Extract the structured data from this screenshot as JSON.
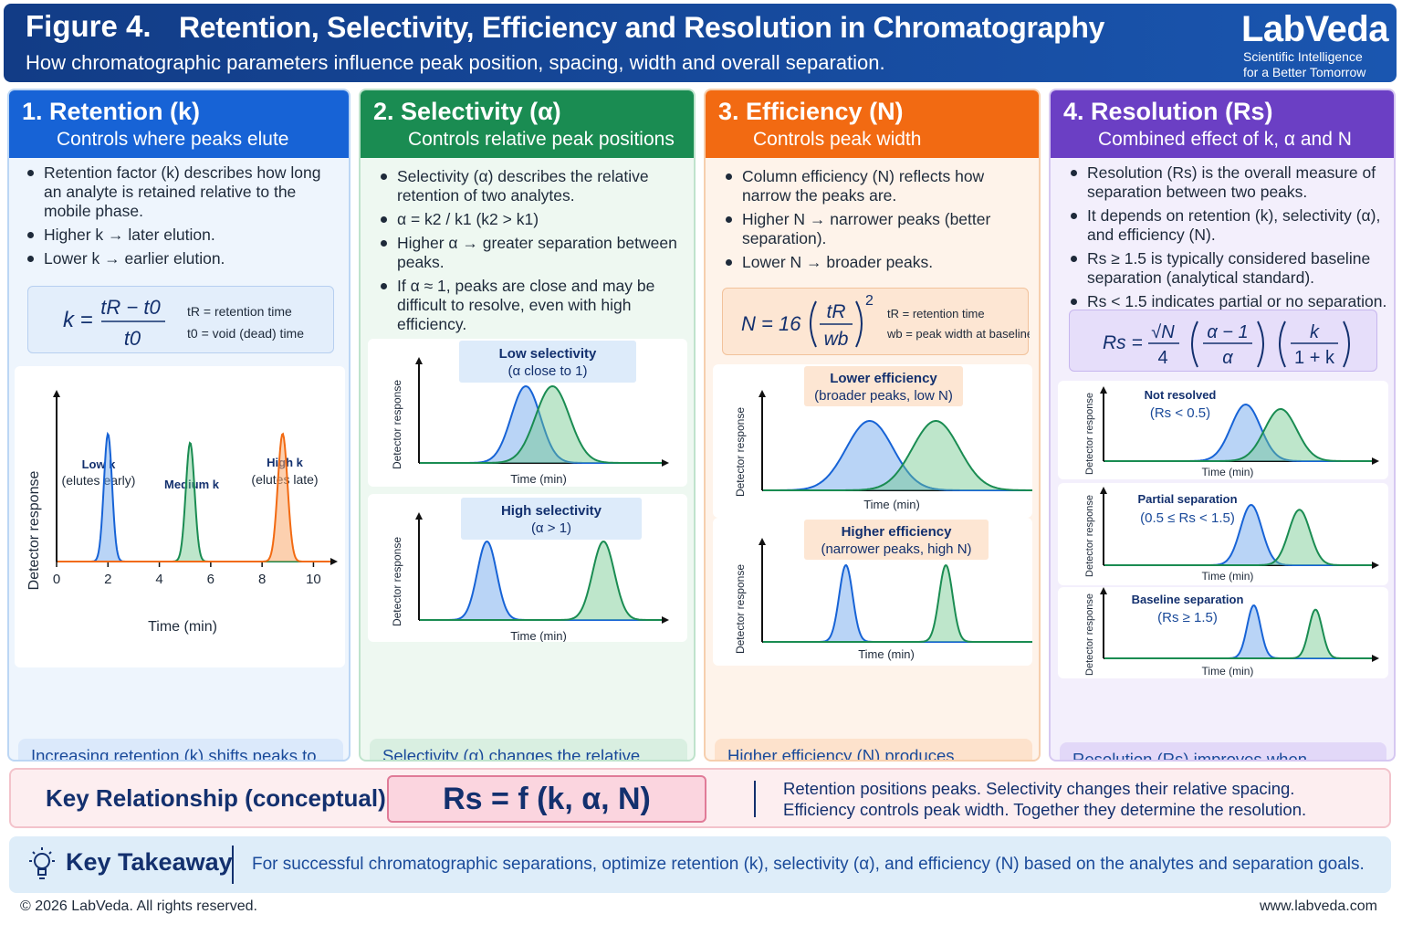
{
  "header": {
    "figure_label": "Figure 4.",
    "title": "Retention, Selectivity, Efficiency and Resolution in Chromatography",
    "subtitle": "How chromatographic parameters influence peak position, spacing, width and overall separation.",
    "brand": "LabVeda",
    "tagline_1": "Scientific Intelligence",
    "tagline_2": "for a Better Tomorrow"
  },
  "colors": {
    "blue": "#1763d6",
    "green": "#1a8c52",
    "orange": "#f26a12",
    "purple": "#6b3fc4",
    "navy": "#13306e"
  },
  "panels": [
    {
      "title": "1.  Retention (k)",
      "subtitle": "Controls where peaks elute",
      "bullets": [
        "Retention factor (k) describes how long an analyte is retained relative to the mobile phase.",
        "Higher k  →  later elution.",
        "Lower k  →  earlier elution."
      ],
      "formula": {
        "lhs": "k =",
        "numerator": "tR − t0",
        "denominator": "t0",
        "def_1": "tR = retention time",
        "def_2": "t0 = void (dead) time"
      },
      "chart": {
        "ylabel": "Detector response",
        "xlabel": "Time (min)",
        "ticks": [
          "0",
          "2",
          "4",
          "6",
          "8",
          "10"
        ],
        "peak_labels": [
          [
            "Low k",
            "(elutes early)"
          ],
          [
            "Medium k",
            ""
          ],
          [
            "High k",
            "(elutes late)"
          ]
        ]
      },
      "note": "Increasing retention (k) shifts peaks to longer retention times but does not change their relative spacing."
    },
    {
      "title": "2.  Selectivity (α)",
      "subtitle": "Controls relative peak positions",
      "bullets": [
        "Selectivity (α) describes the relative retention of two analytes.",
        "α = k2 / k1    (k2 > k1)",
        "Higher α  →  greater separation between peaks.",
        "If α ≈ 1, peaks are close and may be difficult to resolve, even with high efficiency."
      ],
      "charts": [
        {
          "label_1": "Low selectivity",
          "label_2": "(α close to 1)",
          "ylabel": "Detector response",
          "xlabel": "Time (min)"
        },
        {
          "label_1": "High selectivity",
          "label_2": "(α > 1)",
          "ylabel": "Detector response",
          "xlabel": "Time (min)"
        }
      ],
      "note": "Selectivity (α) changes the relative position of peaks and is critical for separation of closely eluting analytes."
    },
    {
      "title": "3.  Efficiency (N)",
      "subtitle": "Controls peak width",
      "bullets": [
        "Column efficiency (N) reflects how narrow the peaks are.",
        "Higher N  →  narrower peaks (better separation).",
        "Lower N  →  broader peaks."
      ],
      "formula": {
        "lhs": "N = 16",
        "numerator": "tR",
        "denominator": "wb",
        "exponent": "2",
        "def_1": "tR = retention time",
        "def_2": "wb = peak width at baseline"
      },
      "charts": [
        {
          "label_1": "Lower efficiency",
          "label_2": "(broader peaks, low N)",
          "ylabel": "Detector response",
          "xlabel": "Time (min)"
        },
        {
          "label_1": "Higher efficiency",
          "label_2": "(narrower peaks, high N)",
          "ylabel": "Detector response",
          "xlabel": "Time (min)"
        }
      ],
      "note": "Higher efficiency (N) produces narrower peaks, which reduces peak overlap and improves resolution."
    },
    {
      "title": "4.  Resolution (Rs)",
      "subtitle": "Combined effect of k, α and N",
      "bullets": [
        "Resolution (Rs) is the overall measure of separation between two peaks.",
        "It depends on retention (k), selectivity (α), and efficiency (N).",
        "Rs ≥ 1.5 is typically considered baseline separation (analytical standard).",
        "Rs < 1.5 indicates partial or no separation."
      ],
      "formula": {
        "lhs": "Rs =",
        "f1_num": "√N",
        "f1_den": "4",
        "f2_num": "α − 1",
        "f2_den": "α",
        "f3_num": "k",
        "f3_den": "1 + k"
      },
      "charts": [
        {
          "label_1": "Not resolved",
          "label_2": "(Rs < 0.5)",
          "ylabel": "Detector response",
          "xlabel": "Time (min)"
        },
        {
          "label_1": "Partial separation",
          "label_2": "(0.5 ≤ Rs < 1.5)",
          "ylabel": "Detector response",
          "xlabel": "Time (min)"
        },
        {
          "label_1": "Baseline separation",
          "label_2": "(Rs ≥ 1.5)",
          "ylabel": "Detector response",
          "xlabel": "Time (min)"
        }
      ],
      "note": "Resolution (Rs) improves when retention (k), selectivity (α), and efficiency (N) are optimized together."
    }
  ],
  "key": {
    "label": "Key Relationship (conceptual):",
    "formula": "Rs = f (k, α, N)",
    "text_1": "Retention positions peaks. Selectivity changes their relative spacing.",
    "text_2": "Efficiency controls peak width. Together they determine the resolution."
  },
  "takeaway": {
    "label": "Key Takeaway",
    "text": "For successful chromatographic separations, optimize retention (k), selectivity (α), and efficiency (N) based on the analytes and separation goals."
  },
  "footer": {
    "copyright": "© 2026 LabVeda. All rights reserved.",
    "url": "www.labveda.com"
  },
  "chart_data": [
    {
      "type": "line",
      "panel": "retention",
      "x_ticks": [
        0,
        2,
        4,
        6,
        8,
        10
      ],
      "xlim": [
        0,
        10.5
      ],
      "series": [
        {
          "name": "Low k",
          "center": 2.0,
          "width": 0.16,
          "height": 1.0
        },
        {
          "name": "Medium k",
          "center": 5.2,
          "width": 0.17,
          "height": 0.93
        },
        {
          "name": "High k",
          "center": 8.8,
          "width": 0.19,
          "height": 1.0
        }
      ]
    },
    {
      "type": "line",
      "panel": "low selectivity",
      "peaks": [
        {
          "center": 0.44,
          "width": 0.06
        },
        {
          "center": 0.55,
          "width": 0.07
        }
      ]
    },
    {
      "type": "line",
      "panel": "high selectivity",
      "peaks": [
        {
          "center": 0.28,
          "width": 0.04
        },
        {
          "center": 0.76,
          "width": 0.045
        }
      ]
    },
    {
      "type": "line",
      "panel": "lower efficiency",
      "peaks": [
        {
          "center": 0.39,
          "width": 0.085
        },
        {
          "center": 0.63,
          "width": 0.085
        }
      ]
    },
    {
      "type": "line",
      "panel": "higher efficiency",
      "peaks": [
        {
          "center": 0.31,
          "width": 0.025
        },
        {
          "center": 0.68,
          "width": 0.025
        }
      ]
    },
    {
      "type": "line",
      "panel": "not resolved",
      "peaks": [
        {
          "center": 0.53,
          "width": 0.055
        },
        {
          "center": 0.66,
          "width": 0.06
        }
      ]
    },
    {
      "type": "line",
      "panel": "partial separation",
      "peaks": [
        {
          "center": 0.55,
          "width": 0.04
        },
        {
          "center": 0.73,
          "width": 0.04
        }
      ]
    },
    {
      "type": "line",
      "panel": "baseline separation",
      "peaks": [
        {
          "center": 0.56,
          "width": 0.025
        },
        {
          "center": 0.79,
          "width": 0.025
        }
      ]
    }
  ]
}
